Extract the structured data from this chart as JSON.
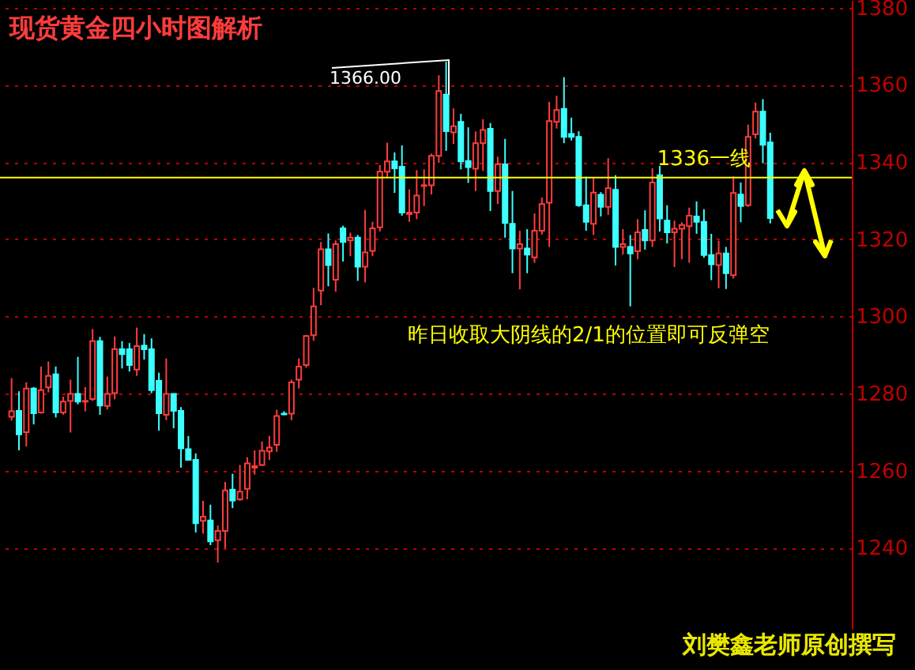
{
  "chart_data": {
    "type": "candlestick",
    "title": "现货黄金四小时图解析",
    "categories": [
      null,
      null,
      null,
      null,
      null,
      null,
      null,
      null,
      null,
      null,
      null,
      null,
      null,
      null,
      null,
      null,
      null,
      null,
      null,
      null,
      null,
      null,
      null,
      null,
      null,
      null,
      null,
      null,
      null,
      null,
      null,
      null,
      null,
      null,
      null,
      null,
      null,
      null,
      null,
      null,
      null,
      null,
      null,
      null,
      null,
      null,
      null,
      null,
      null,
      null,
      null,
      null,
      null,
      null,
      null,
      null,
      null,
      null,
      null,
      null,
      null,
      null,
      null,
      null,
      null,
      null,
      null,
      null,
      null,
      null,
      null,
      null,
      null,
      null,
      null,
      null,
      null,
      null,
      null,
      null,
      null,
      null,
      null,
      null,
      null,
      null,
      null,
      null,
      null,
      null,
      null,
      null,
      null,
      null,
      null,
      null,
      null,
      null,
      null,
      null,
      null,
      null,
      null,
      null
    ],
    "ohlc": [
      [
        1274,
        1284,
        1273,
        1275.4
      ],
      [
        1275.5,
        1280.6,
        1265.3,
        1269.4
      ],
      [
        1270,
        1282.9,
        1266.3,
        1281.3
      ],
      [
        1281.3,
        1281.7,
        1272,
        1274.9
      ],
      [
        1275.1,
        1287,
        1274.8,
        1280.9
      ],
      [
        1281.6,
        1288.3,
        1280.3,
        1284.6
      ],
      [
        1285,
        1287,
        1273.8,
        1275.1
      ],
      [
        1275.1,
        1279.2,
        1274.5,
        1277.9
      ],
      [
        1278.1,
        1283.6,
        1269.9,
        1279.9
      ],
      [
        1279.9,
        1289.5,
        1277.2,
        1277.9
      ],
      [
        1277.9,
        1281.7,
        1275.4,
        1278.1
      ],
      [
        1278.6,
        1296.7,
        1278.1,
        1293.6
      ],
      [
        1293.6,
        1294.7,
        1274.5,
        1276.9
      ],
      [
        1276.8,
        1284.4,
        1275.9,
        1279.9
      ],
      [
        1280.1,
        1294.8,
        1278.5,
        1291.5
      ],
      [
        1291.5,
        1293.6,
        1286.5,
        1290.2
      ],
      [
        1291.5,
        1293.1,
        1285.7,
        1287.4
      ],
      [
        1286.2,
        1297.1,
        1284.6,
        1292.3
      ],
      [
        1292.4,
        1295.4,
        1288.8,
        1291.5
      ],
      [
        1291.5,
        1294.3,
        1280.1,
        1280.9
      ],
      [
        1283.3,
        1285.4,
        1270.4,
        1274.9
      ],
      [
        1274.5,
        1289.1,
        1273.1,
        1279.9
      ],
      [
        1279.9,
        1279.9,
        1271,
        1275.5
      ],
      [
        1275.5,
        1276.5,
        1260.8,
        1265.8
      ],
      [
        1265.6,
        1269,
        1262.6,
        1262.8
      ],
      [
        1262.8,
        1264.5,
        1244,
        1246.4
      ],
      [
        1247,
        1252.2,
        1243.7,
        1248.1
      ],
      [
        1247.1,
        1251.2,
        1240.7,
        1241.7
      ],
      [
        1242,
        1245.8,
        1236.2,
        1244.4
      ],
      [
        1244.4,
        1257.1,
        1239.9,
        1254.9
      ],
      [
        1255.1,
        1259.2,
        1250.3,
        1252.3
      ],
      [
        1252.6,
        1261.5,
        1252.2,
        1254.6
      ],
      [
        1255.3,
        1263.5,
        1252.6,
        1261.9
      ],
      [
        1260.8,
        1265.3,
        1259,
        1261.2
      ],
      [
        1261.5,
        1267.6,
        1261.2,
        1265.2
      ],
      [
        1265,
        1269,
        1262.8,
        1266
      ],
      [
        1266.7,
        1275.8,
        1264.9,
        1274.2
      ],
      [
        1274.8,
        1275.4,
        1274.4,
        1274.6
      ],
      [
        1274.8,
        1283.6,
        1273.1,
        1282.9
      ],
      [
        1283.6,
        1289.1,
        1281.3,
        1287
      ],
      [
        1287.4,
        1295.2,
        1286.7,
        1294.9
      ],
      [
        1295.1,
        1307.4,
        1293.7,
        1302.6
      ],
      [
        1306.7,
        1319.3,
        1302.9,
        1317.4
      ],
      [
        1317.4,
        1321.5,
        1307.8,
        1313.3
      ],
      [
        1309.5,
        1319.7,
        1306.4,
        1318.7
      ],
      [
        1322.8,
        1323.5,
        1314.2,
        1319.3
      ],
      [
        1319.7,
        1321.7,
        1315.6,
        1320.4
      ],
      [
        1320.4,
        1321.1,
        1309.2,
        1312.9
      ],
      [
        1312.9,
        1327.6,
        1308.8,
        1316.6
      ],
      [
        1317,
        1324.5,
        1315.6,
        1322.8
      ],
      [
        1323.1,
        1339.2,
        1322,
        1337.5
      ],
      [
        1337.5,
        1345,
        1336.1,
        1340.2
      ],
      [
        1340.2,
        1342.5,
        1332,
        1338.4
      ],
      [
        1338.8,
        1344.3,
        1326.1,
        1326.9
      ],
      [
        1326.5,
        1332.9,
        1324.5,
        1326.9
      ],
      [
        1326.9,
        1337.9,
        1325.2,
        1331.3
      ],
      [
        1333.8,
        1338.1,
        1328.6,
        1334
      ],
      [
        1334,
        1342.2,
        1331.6,
        1341.6
      ],
      [
        1341.6,
        1362.5,
        1339.8,
        1358.4
      ],
      [
        1357.5,
        1366,
        1342.9,
        1348
      ],
      [
        1347.7,
        1353.9,
        1344.7,
        1349.3
      ],
      [
        1350.4,
        1352.5,
        1338.1,
        1340.2
      ],
      [
        1340.3,
        1349,
        1334.6,
        1338.7
      ],
      [
        1338.3,
        1347.9,
        1332.5,
        1344.9
      ],
      [
        1344.9,
        1351.1,
        1337.7,
        1348.3
      ],
      [
        1348.6,
        1350.1,
        1327.3,
        1332.5
      ],
      [
        1332.5,
        1341.4,
        1329.1,
        1339.4
      ],
      [
        1339.4,
        1346,
        1320.4,
        1324.2
      ],
      [
        1324,
        1332.5,
        1311.2,
        1317.6
      ],
      [
        1317.6,
        1322.2,
        1307,
        1318.7
      ],
      [
        1317.6,
        1322.6,
        1311.2,
        1316
      ],
      [
        1315.3,
        1326.7,
        1313.9,
        1322.2
      ],
      [
        1322.2,
        1330.8,
        1321.2,
        1329.1
      ],
      [
        1329.5,
        1355.6,
        1318,
        1350.6
      ],
      [
        1350.4,
        1357.2,
        1348.7,
        1353.5
      ],
      [
        1353.8,
        1362,
        1344.9,
        1346.5
      ],
      [
        1347.3,
        1351.5,
        1345.6,
        1346.5
      ],
      [
        1346.5,
        1348,
        1328.4,
        1328.8
      ],
      [
        1328.8,
        1336.2,
        1322.2,
        1324.5
      ],
      [
        1324,
        1335.9,
        1321.1,
        1332.1
      ],
      [
        1331.5,
        1332.2,
        1325.9,
        1328.4
      ],
      [
        1328.4,
        1341,
        1326.3,
        1333.2
      ],
      [
        1332.8,
        1336.6,
        1313.2,
        1318
      ],
      [
        1318,
        1322.6,
        1316,
        1318.7
      ],
      [
        1318,
        1321.1,
        1302.6,
        1316.3
      ],
      [
        1316.9,
        1325.2,
        1314.8,
        1321.8
      ],
      [
        1322.4,
        1327.5,
        1317.3,
        1319.7
      ],
      [
        1319.7,
        1338.4,
        1318,
        1334.7
      ],
      [
        1336.6,
        1339,
        1322,
        1325.4
      ],
      [
        1324.8,
        1328.8,
        1318.9,
        1321.8
      ],
      [
        1321.8,
        1324.8,
        1312.8,
        1322.7
      ],
      [
        1322.7,
        1324.4,
        1314.8,
        1323.7
      ],
      [
        1323.4,
        1328.2,
        1313.9,
        1326.1
      ],
      [
        1325.9,
        1329.8,
        1321.4,
        1324.5
      ],
      [
        1324.5,
        1327.8,
        1315.2,
        1315.9
      ],
      [
        1315.9,
        1321.4,
        1309.4,
        1313.5
      ],
      [
        1313.3,
        1319.6,
        1307.3,
        1316.3
      ],
      [
        1316.3,
        1318,
        1307.1,
        1311.2
      ],
      [
        1310.7,
        1336.3,
        1309.8,
        1332
      ],
      [
        1331.6,
        1334.7,
        1324.4,
        1328.6
      ],
      [
        1328.8,
        1349.7,
        1328.4,
        1346.5
      ],
      [
        1347.2,
        1355.4,
        1346.1,
        1353.1
      ],
      [
        1353.1,
        1356.3,
        1339.7,
        1344.5
      ],
      [
        1345.1,
        1347.6,
        1324.1,
        1325.5
      ]
    ],
    "ylim": [
      1219,
      1382
    ],
    "yticks": [
      1240,
      1260,
      1280,
      1300,
      1320,
      1340,
      1360,
      1380
    ],
    "grid": "y",
    "tick_labels": "y",
    "ref_lines": [
      {
        "axis": "y",
        "value": 1336,
        "label": "1336一线",
        "color": "#ffff00"
      }
    ],
    "annotations": [
      "1366.00",
      "昨日收取大阴线的2/1的位置即可反弹空",
      "刘樊鑫老师原创撰写"
    ]
  }
}
